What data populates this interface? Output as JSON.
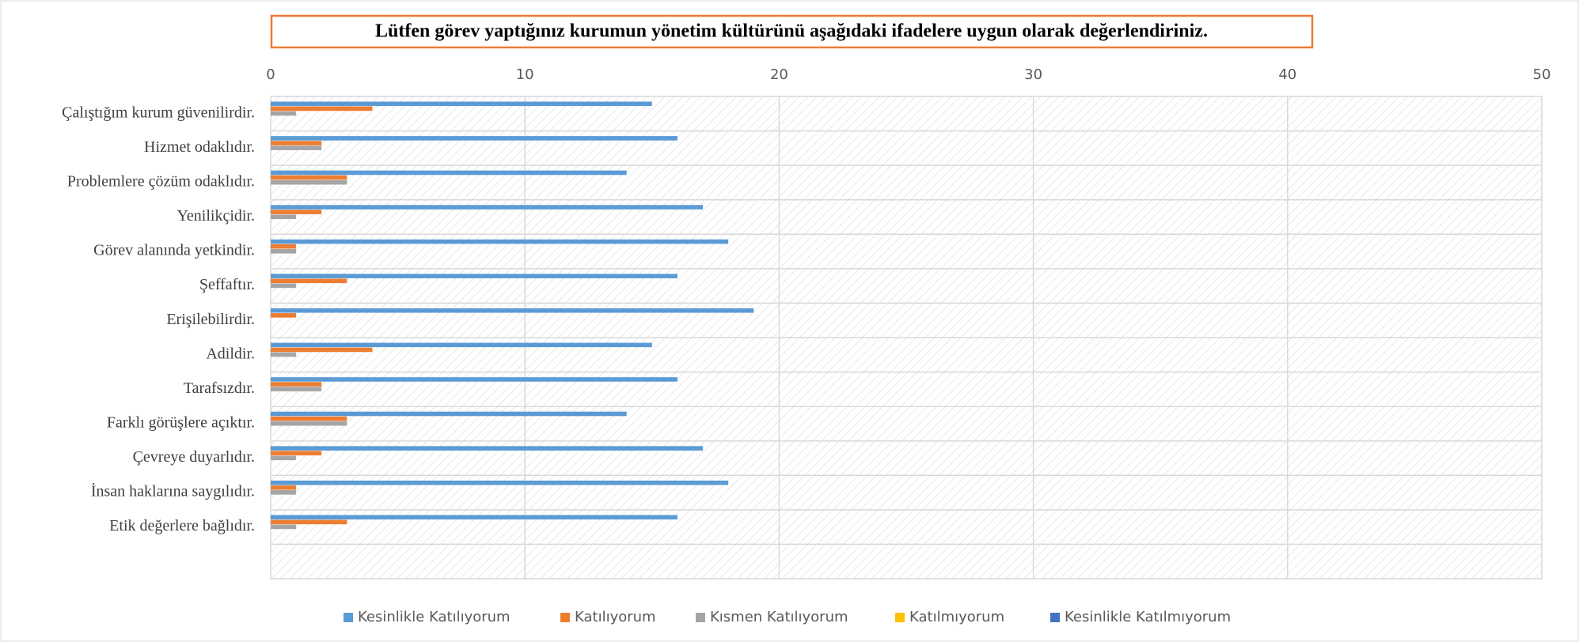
{
  "chart_data": {
    "type": "bar",
    "orientation": "horizontal",
    "title": "Lütfen görev yaptığınız kurumun yönetim kültürünü aşağıdaki ifadelere uygun olarak değerlendiriniz.",
    "categories": [
      "Çalıştığım kurum güvenilirdir.",
      "Hizmet odaklıdır.",
      "Problemlere çözüm odaklıdır.",
      "Yenilikçidir.",
      "Görev alanında yetkindir.",
      "Şeffaftır.",
      "Erişilebilirdir.",
      "Adildir.",
      "Tarafsızdır.",
      "Farklı görüşlere açıktır.",
      "Çevreye duyarlıdır.",
      "İnsan haklarına saygılıdır.",
      "Etik değerlere bağlıdır.",
      null
    ],
    "series": [
      {
        "name": "Kesinlikle Katılıyorum",
        "color": "#5b9bd5",
        "values": [
          15,
          16,
          14,
          17,
          18,
          16,
          19,
          15,
          16,
          14,
          17,
          18,
          16,
          null
        ]
      },
      {
        "name": "Katılıyorum",
        "color": "#ed7d31",
        "values": [
          4,
          2,
          3,
          2,
          1,
          3,
          1,
          4,
          2,
          3,
          2,
          1,
          3,
          null
        ]
      },
      {
        "name": "Kısmen Katılıyorum",
        "color": "#a5a5a5",
        "values": [
          1,
          2,
          3,
          1,
          1,
          1,
          0,
          1,
          2,
          3,
          1,
          1,
          1,
          null
        ]
      },
      {
        "name": "Katılmıyorum",
        "color": "#ffc000",
        "values": [
          0,
          0,
          0,
          0,
          0,
          0,
          0,
          0,
          0,
          0,
          0,
          0,
          0,
          null
        ]
      },
      {
        "name": "Kesinlikle Katılmıyorum",
        "color": "#4472c4",
        "values": [
          0,
          0,
          0,
          0,
          0,
          0,
          0,
          0,
          0,
          0,
          0,
          0,
          0,
          null
        ]
      }
    ],
    "xlim": [
      0,
      50
    ],
    "xticks": [
      0,
      10,
      20,
      30,
      40,
      50
    ],
    "grid": true,
    "legend": "bottom"
  }
}
